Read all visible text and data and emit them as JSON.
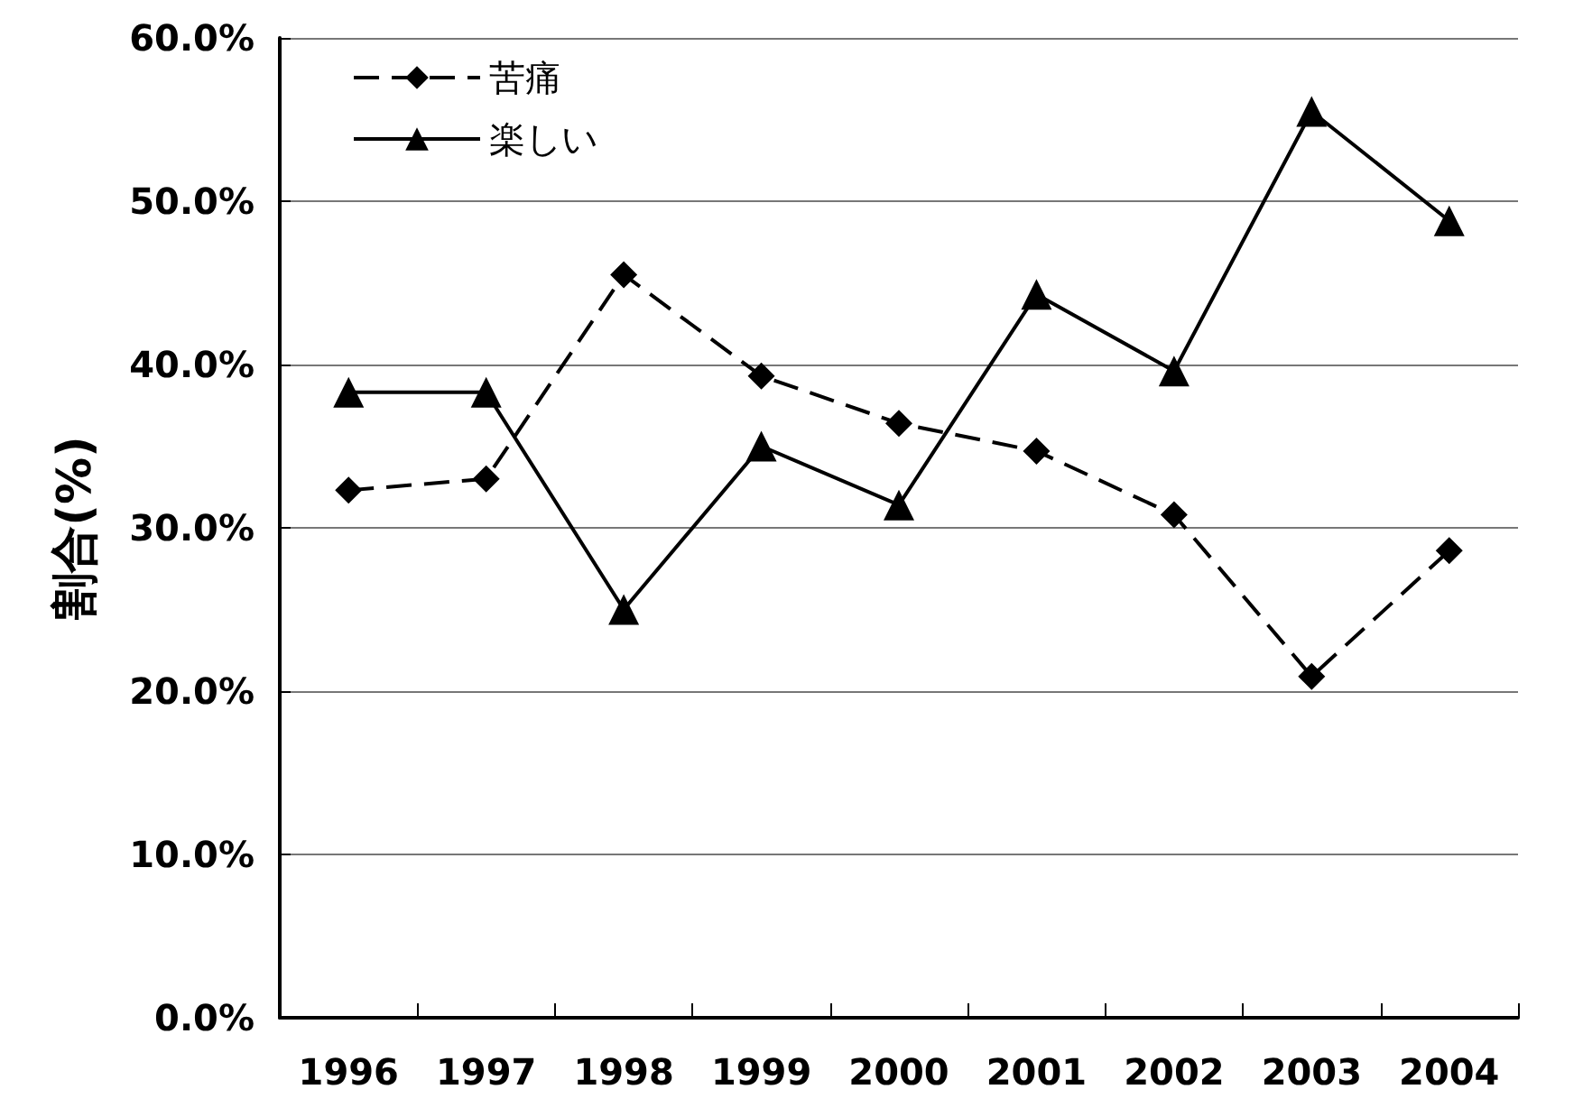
{
  "chart_data": {
    "type": "line",
    "ylabel": "割合(%)",
    "categories": [
      "1996",
      "1997",
      "1998",
      "1999",
      "2000",
      "2001",
      "2002",
      "2003",
      "2004"
    ],
    "series": [
      {
        "name": "苦痛",
        "color": "#000000",
        "marker": "diamond",
        "line_style": "dashed",
        "values": [
          32.3,
          33.0,
          45.5,
          39.3,
          36.4,
          34.7,
          30.8,
          20.9,
          28.6
        ]
      },
      {
        "name": "楽しい",
        "color": "#000000",
        "marker": "triangle",
        "line_style": "solid",
        "values": [
          38.3,
          38.3,
          25.0,
          35.0,
          31.4,
          44.3,
          39.6,
          55.5,
          48.8
        ]
      }
    ],
    "ylim": [
      0,
      60
    ],
    "yticks": [
      {
        "value": 0,
        "label": "0.0%"
      },
      {
        "value": 10,
        "label": "10.0%"
      },
      {
        "value": 20,
        "label": "20.0%"
      },
      {
        "value": 30,
        "label": "30.0%"
      },
      {
        "value": 40,
        "label": "40.0%"
      },
      {
        "value": 50,
        "label": "50.0%"
      },
      {
        "value": 60,
        "label": "60.0%"
      }
    ],
    "grid": "y",
    "legend": "top left"
  }
}
